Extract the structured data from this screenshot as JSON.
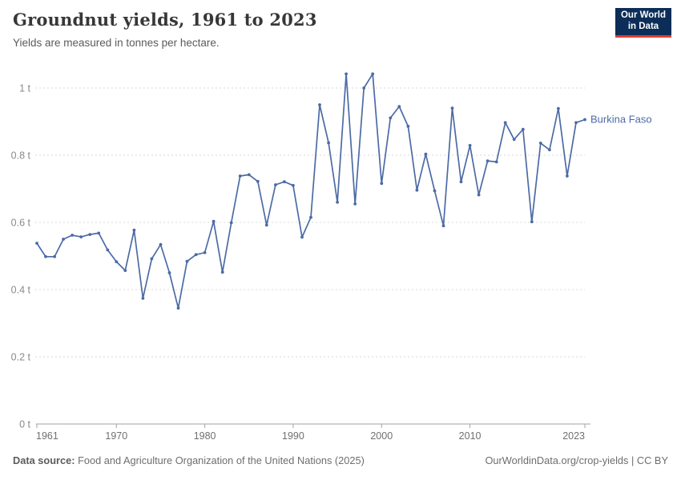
{
  "header": {
    "title": "Groundnut yields, 1961 to 2023",
    "subtitle": "Yields are measured in tonnes per hectare.",
    "logo": {
      "line1": "Our World",
      "line2": "in Data",
      "bg_color": "#0c2d57",
      "stripe_color": "#dc3d33"
    }
  },
  "chart_data": {
    "type": "line",
    "title": "Groundnut yields, 1961 to 2023",
    "subtitle": "Yields are measured in tonnes per hectare.",
    "xlabel": "",
    "ylabel": "tonnes per hectare",
    "xlim": [
      1961,
      2023
    ],
    "ylim": [
      0,
      1.05
    ],
    "grid": "horizontal-dashed",
    "legend_position": "end-of-line-label",
    "x_ticks": [
      1961,
      1970,
      1980,
      1990,
      2000,
      2010,
      2023
    ],
    "y_ticks": [
      0,
      0.2,
      0.4,
      0.6,
      0.8,
      1
    ],
    "y_tick_labels": [
      "0 t",
      "0.2 t",
      "0.4 t",
      "0.6 t",
      "0.8 t",
      "1 t"
    ],
    "end_label": "Burkina Faso",
    "line_color": "#4c6ba5",
    "series": [
      {
        "name": "Burkina Faso",
        "color": "#4c6ba5",
        "x": [
          1961,
          1962,
          1963,
          1964,
          1965,
          1966,
          1967,
          1968,
          1969,
          1970,
          1971,
          1972,
          1973,
          1974,
          1975,
          1976,
          1977,
          1978,
          1979,
          1980,
          1981,
          1982,
          1983,
          1984,
          1985,
          1986,
          1987,
          1988,
          1989,
          1990,
          1991,
          1992,
          1993,
          1994,
          1995,
          1996,
          1997,
          1998,
          1999,
          2000,
          2001,
          2002,
          2003,
          2004,
          2005,
          2006,
          2007,
          2008,
          2009,
          2010,
          2011,
          2012,
          2013,
          2014,
          2015,
          2016,
          2017,
          2018,
          2019,
          2020,
          2021,
          2022,
          2023
        ],
        "values": [
          0.538,
          0.498,
          0.498,
          0.55,
          0.562,
          0.557,
          0.564,
          0.568,
          0.518,
          0.483,
          0.457,
          0.577,
          0.374,
          0.492,
          0.534,
          0.45,
          0.345,
          0.484,
          0.504,
          0.51,
          0.603,
          0.452,
          0.599,
          0.738,
          0.742,
          0.722,
          0.592,
          0.712,
          0.721,
          0.71,
          0.556,
          0.615,
          0.95,
          0.837,
          0.66,
          1.042,
          0.655,
          1.0,
          1.042,
          0.716,
          0.911,
          0.945,
          0.886,
          0.696,
          0.803,
          0.694,
          0.59,
          0.94,
          0.721,
          0.829,
          0.682,
          0.783,
          0.78,
          0.897,
          0.847,
          0.877,
          0.602,
          0.836,
          0.816,
          0.939,
          0.738,
          0.897,
          0.906
        ]
      }
    ],
    "style": {
      "grid_color": "#dadada",
      "axis_color": "#a3a3a3",
      "y_label_color": "#8a8a8a",
      "x_label_color": "#707070"
    }
  },
  "footer": {
    "source_label": "Data source:",
    "source_text": " Food and Agriculture Organization of the United Nations (2025)",
    "credit": "OurWorldinData.org/crop-yields | CC BY"
  }
}
